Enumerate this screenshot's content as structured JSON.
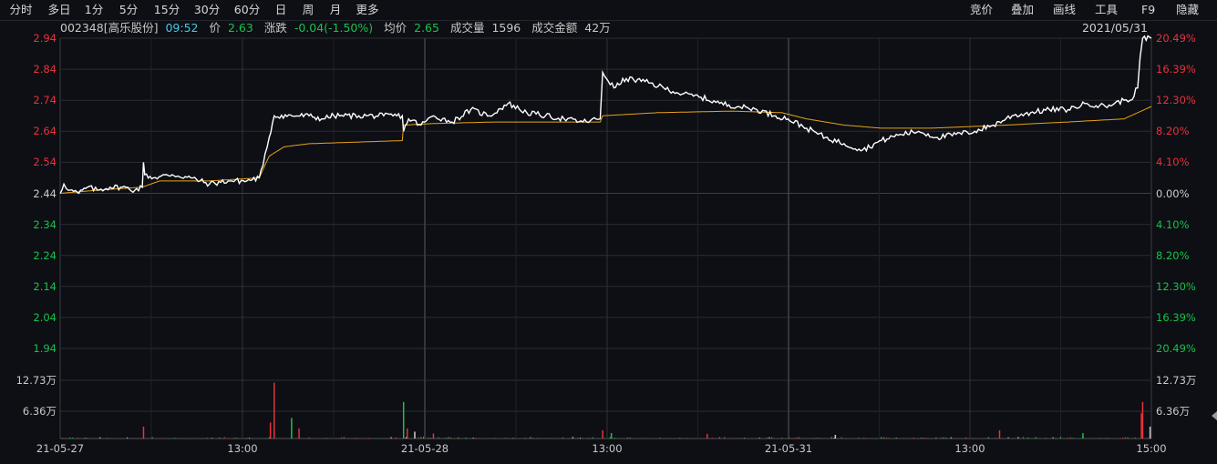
{
  "period_tabs": [
    "分时",
    "多日",
    "1分",
    "5分",
    "15分",
    "30分",
    "60分",
    "日",
    "周",
    "月",
    "更多"
  ],
  "active_tab": "分时",
  "tools": [
    "竞价",
    "叠加",
    "画线",
    "工具",
    "F9",
    "隐藏"
  ],
  "info": {
    "stock": "002348[高乐股份]",
    "time": "09:52",
    "price_label": "价",
    "price": "2.63",
    "change_label": "涨跌",
    "change": "-0.04(-1.50%)",
    "avg_label": "均价",
    "avg": "2.65",
    "volume_label": "成交量",
    "volume": "1596",
    "amount_label": "成交金额",
    "amount": "42万"
  },
  "date_stamp": "2021/05/31",
  "colors": {
    "up": "#e8323c",
    "down": "#17c24a",
    "neutral": "#cccccc",
    "price_line": "#ffffff",
    "avg_line": "#e8a317",
    "grid": "#2a2d35",
    "active_tab_bg": "#b01818"
  },
  "chart_data": {
    "type": "line",
    "title": "",
    "x_labels": [
      "21-05-27",
      "13:00",
      "21-05-28",
      "13:00",
      "21-05-31",
      "13:00",
      "15:00"
    ],
    "price_ticks": [
      "2.94",
      "2.84",
      "2.74",
      "2.64",
      "2.54",
      "2.44",
      "2.34",
      "2.24",
      "2.14",
      "2.04",
      "1.94"
    ],
    "pct_ticks": [
      "20.49%",
      "16.39%",
      "12.30%",
      "8.20%",
      "4.10%",
      "0.00%",
      "4.10%",
      "8.20%",
      "12.30%",
      "16.39%",
      "20.49%"
    ],
    "ylim": [
      1.94,
      2.94
    ],
    "base_price": 2.44,
    "volume_ticks": [
      "12.73万",
      "6.36万"
    ],
    "volume_max": 127300,
    "price_points": [
      [
        0,
        2.44
      ],
      [
        3,
        2.47
      ],
      [
        8,
        2.45
      ],
      [
        15,
        2.44
      ],
      [
        22,
        2.46
      ],
      [
        30,
        2.45
      ],
      [
        40,
        2.46
      ],
      [
        50,
        2.46
      ],
      [
        60,
        2.45
      ],
      [
        66,
        2.46
      ],
      [
        67,
        2.54
      ],
      [
        68,
        2.5
      ],
      [
        75,
        2.49
      ],
      [
        90,
        2.5
      ],
      [
        105,
        2.49
      ],
      [
        120,
        2.47
      ],
      [
        135,
        2.48
      ],
      [
        150,
        2.48
      ],
      [
        160,
        2.49
      ],
      [
        163,
        2.53
      ],
      [
        168,
        2.62
      ],
      [
        172,
        2.69
      ],
      [
        200,
        2.69
      ],
      [
        210,
        2.68
      ],
      [
        220,
        2.69
      ],
      [
        240,
        2.69
      ],
      [
        260,
        2.69
      ],
      [
        275,
        2.69
      ],
      [
        276,
        2.64
      ],
      [
        280,
        2.68
      ],
      [
        290,
        2.66
      ],
      [
        300,
        2.69
      ],
      [
        315,
        2.67
      ],
      [
        330,
        2.71
      ],
      [
        345,
        2.69
      ],
      [
        360,
        2.73
      ],
      [
        375,
        2.7
      ],
      [
        390,
        2.69
      ],
      [
        405,
        2.68
      ],
      [
        420,
        2.67
      ],
      [
        434,
        2.68
      ],
      [
        436,
        2.83
      ],
      [
        445,
        2.78
      ],
      [
        455,
        2.81
      ],
      [
        470,
        2.8
      ],
      [
        485,
        2.78
      ],
      [
        500,
        2.76
      ],
      [
        515,
        2.75
      ],
      [
        530,
        2.73
      ],
      [
        545,
        2.72
      ],
      [
        560,
        2.71
      ],
      [
        575,
        2.69
      ],
      [
        585,
        2.68
      ],
      [
        600,
        2.65
      ],
      [
        615,
        2.62
      ],
      [
        630,
        2.6
      ],
      [
        645,
        2.58
      ],
      [
        660,
        2.61
      ],
      [
        675,
        2.63
      ],
      [
        690,
        2.64
      ],
      [
        705,
        2.62
      ],
      [
        720,
        2.63
      ],
      [
        735,
        2.64
      ],
      [
        750,
        2.66
      ],
      [
        765,
        2.69
      ],
      [
        780,
        2.7
      ],
      [
        795,
        2.71
      ],
      [
        810,
        2.71
      ],
      [
        825,
        2.73
      ],
      [
        840,
        2.72
      ],
      [
        855,
        2.74
      ],
      [
        860,
        2.74
      ],
      [
        866,
        2.78
      ],
      [
        868,
        2.88
      ],
      [
        870,
        2.94
      ],
      [
        877,
        2.94
      ]
    ],
    "avg_points": [
      [
        0,
        2.44
      ],
      [
        30,
        2.45
      ],
      [
        66,
        2.46
      ],
      [
        80,
        2.48
      ],
      [
        120,
        2.48
      ],
      [
        160,
        2.49
      ],
      [
        168,
        2.56
      ],
      [
        180,
        2.59
      ],
      [
        200,
        2.6
      ],
      [
        275,
        2.61
      ],
      [
        276,
        2.66
      ],
      [
        300,
        2.665
      ],
      [
        350,
        2.67
      ],
      [
        434,
        2.67
      ],
      [
        436,
        2.69
      ],
      [
        480,
        2.7
      ],
      [
        540,
        2.705
      ],
      [
        580,
        2.7
      ],
      [
        600,
        2.68
      ],
      [
        630,
        2.66
      ],
      [
        660,
        2.65
      ],
      [
        700,
        2.65
      ],
      [
        760,
        2.66
      ],
      [
        810,
        2.67
      ],
      [
        855,
        2.68
      ],
      [
        866,
        2.7
      ],
      [
        877,
        2.72
      ]
    ],
    "volume_spikes": [
      {
        "i": 67,
        "v": 26000,
        "dir": "up"
      },
      {
        "i": 172,
        "v": 122000,
        "dir": "up"
      },
      {
        "i": 169,
        "v": 35000,
        "dir": "up"
      },
      {
        "i": 186,
        "v": 45000,
        "dir": "down"
      },
      {
        "i": 192,
        "v": 22000,
        "dir": "up"
      },
      {
        "i": 276,
        "v": 80000,
        "dir": "down"
      },
      {
        "i": 279,
        "v": 22000,
        "dir": "up"
      },
      {
        "i": 285,
        "v": 15000,
        "dir": "neutral"
      },
      {
        "i": 300,
        "v": 11000,
        "dir": "up"
      },
      {
        "i": 436,
        "v": 18000,
        "dir": "up"
      },
      {
        "i": 443,
        "v": 12000,
        "dir": "down"
      },
      {
        "i": 520,
        "v": 10000,
        "dir": "up"
      },
      {
        "i": 623,
        "v": 8000,
        "dir": "neutral"
      },
      {
        "i": 755,
        "v": 18000,
        "dir": "up"
      },
      {
        "i": 822,
        "v": 12000,
        "dir": "down"
      },
      {
        "i": 869,
        "v": 55000,
        "dir": "up"
      },
      {
        "i": 870,
        "v": 80000,
        "dir": "up"
      },
      {
        "i": 876,
        "v": 26000,
        "dir": "neutral"
      }
    ]
  }
}
